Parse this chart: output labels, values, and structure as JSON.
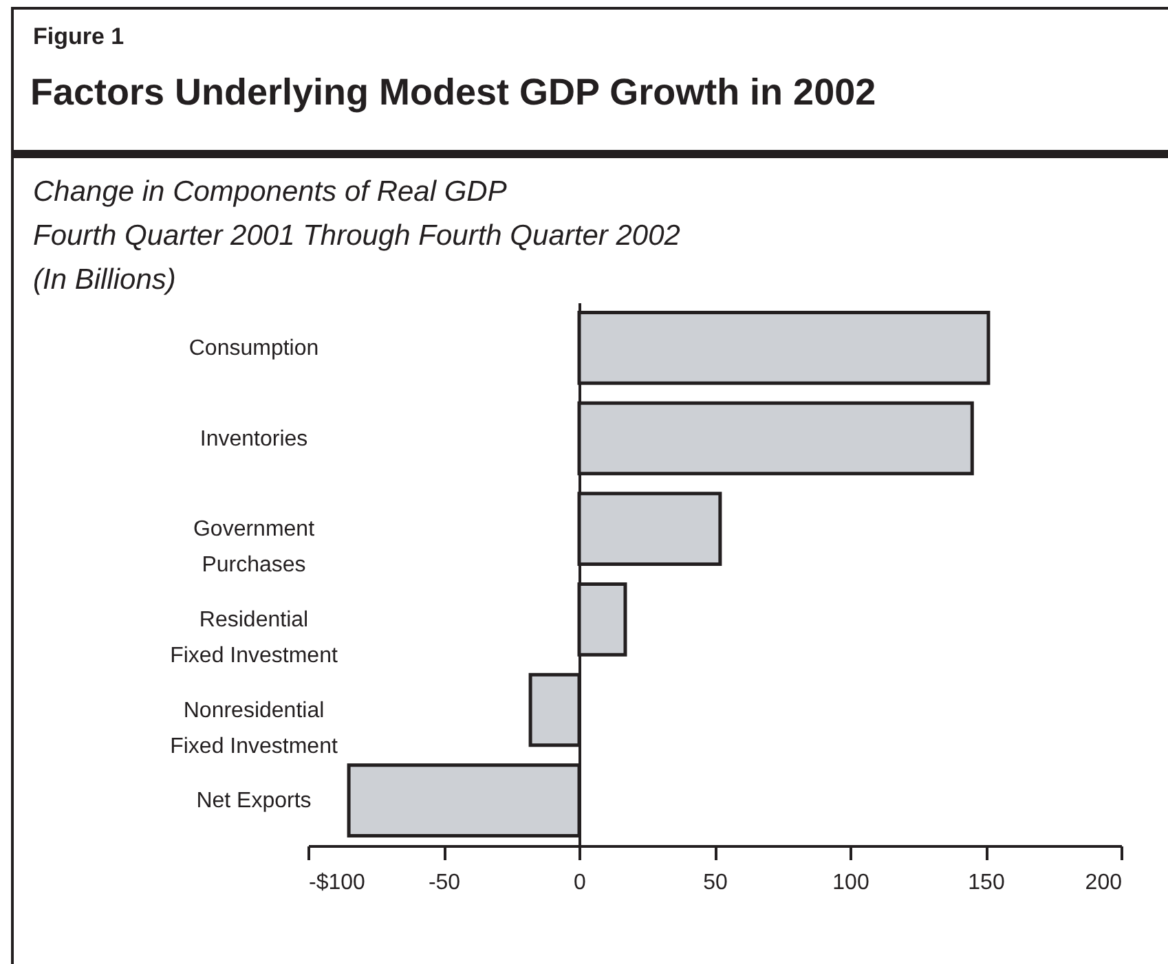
{
  "chart_data": {
    "type": "bar",
    "orientation": "horizontal",
    "annotations": [
      "Figure 1"
    ],
    "title": "Factors Underlying Modest GDP Growth in 2002",
    "subtitle": "Change in Components of Real GDP\nFourth Quarter 2001 Through Fourth Quarter 2002\n(In Billions)",
    "categories": [
      "Consumption",
      "Inventories",
      "Government Purchases",
      "Residential Fixed Investment",
      "Nonresidential Fixed Investment",
      "Net Exports"
    ],
    "values": [
      151,
      145,
      52,
      17,
      -18,
      -85
    ],
    "color": "#cdd0d5",
    "xlim": [
      -100,
      200
    ],
    "xticks": [
      {
        "value": -100,
        "label": "-$100"
      },
      -50,
      0,
      50,
      100,
      150,
      200
    ]
  }
}
